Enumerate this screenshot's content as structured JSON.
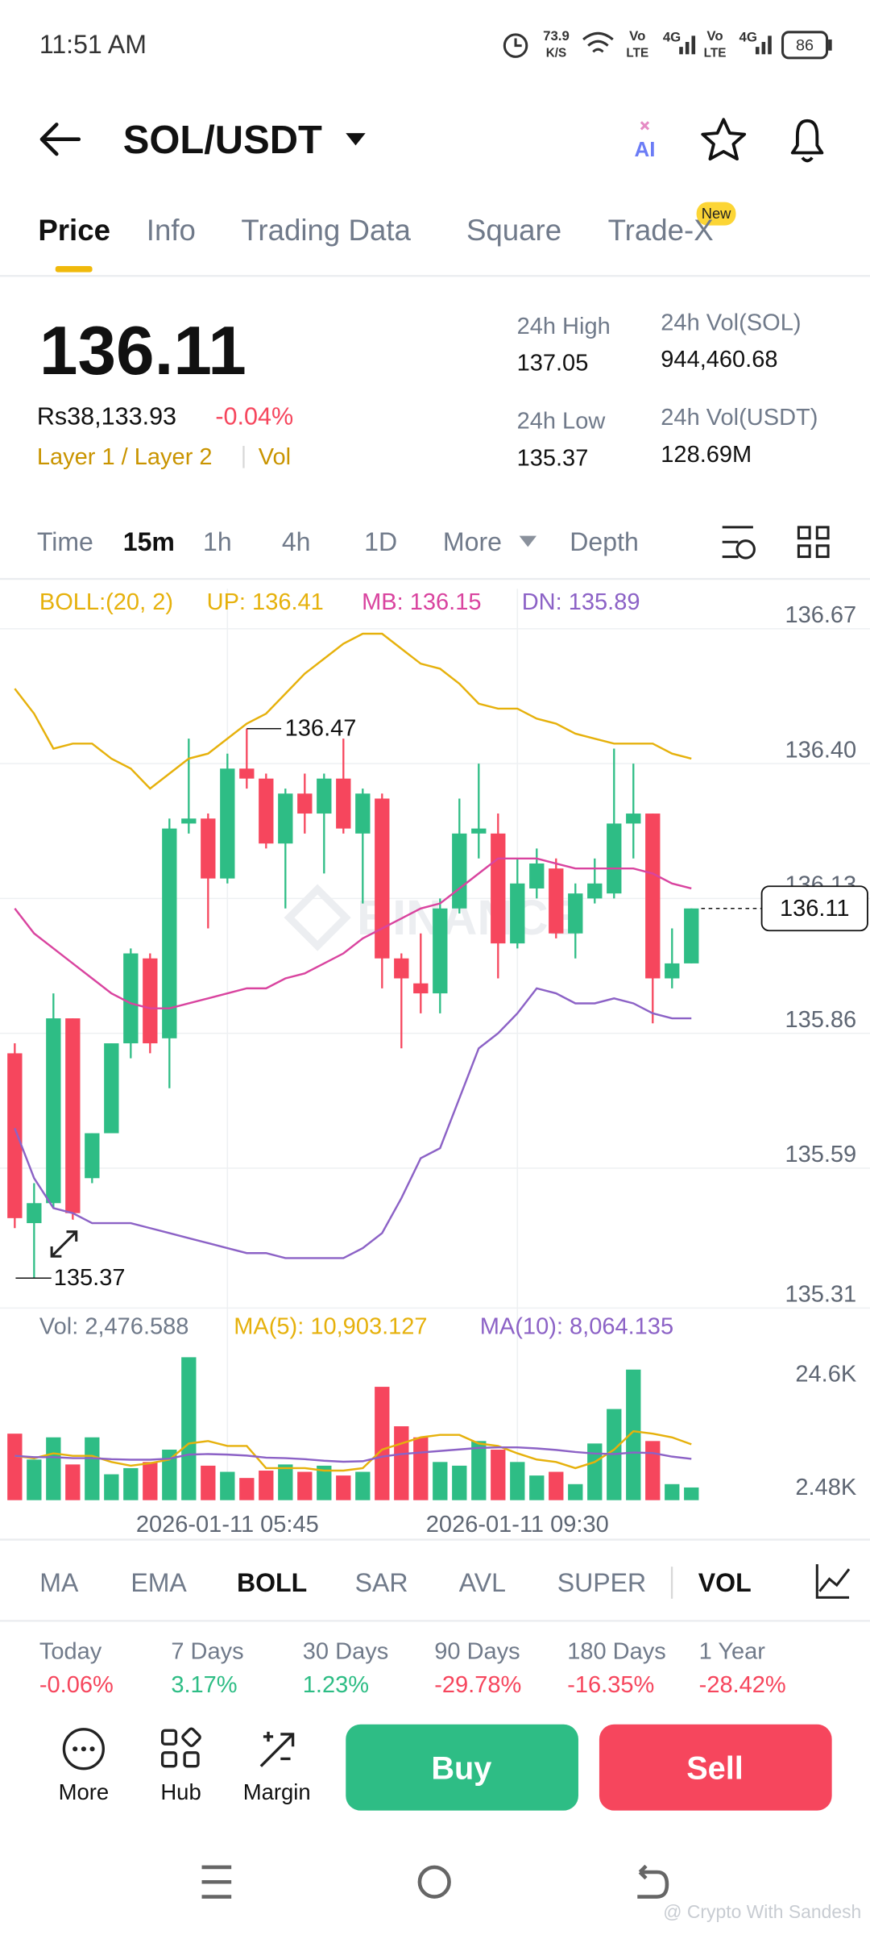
{
  "status_bar": {
    "time": "11:51 AM",
    "speed": "73.9",
    "speed_unit": "K/S",
    "volte": "Vo",
    "lte": "LTE",
    "net": "4G",
    "battery": "86"
  },
  "header": {
    "pair": "SOL/USDT",
    "ai": "AI"
  },
  "tabs": [
    "Price",
    "Info",
    "Trading Data",
    "Square",
    "Trade-X"
  ],
  "tab_badge": "New",
  "price_panel": {
    "price": "136.11",
    "fiat": "Rs38,133.93",
    "change": "-0.04%",
    "tags": [
      "Layer 1 / Layer 2",
      "Vol"
    ],
    "stats": [
      {
        "label": "24h High",
        "value": "137.05"
      },
      {
        "label": "24h Vol(SOL)",
        "value": "944,460.68"
      },
      {
        "label": "24h Low",
        "value": "135.37"
      },
      {
        "label": "24h Vol(USDT)",
        "value": "128.69M"
      }
    ]
  },
  "intervals": [
    "Time",
    "15m",
    "1h",
    "4h",
    "1D",
    "More",
    "Depth"
  ],
  "chart_data": [
    {
      "type": "candlestick",
      "title": "BOLL:(20, 2)",
      "watermark": "BINANCE",
      "categories": [
        null,
        null,
        null,
        null,
        null,
        null,
        null,
        null,
        null,
        null,
        null,
        "2026-01-11 05:45",
        null,
        null,
        null,
        null,
        null,
        null,
        null,
        null,
        null,
        null,
        null,
        null,
        null,
        null,
        "2026-01-11 09:30",
        null,
        null,
        null,
        null,
        null,
        null,
        null,
        null,
        null
      ],
      "open": [
        135.82,
        135.48,
        135.52,
        135.89,
        135.57,
        135.66,
        135.84,
        136.01,
        135.85,
        136.28,
        136.29,
        136.17,
        136.39,
        136.37,
        136.24,
        136.34,
        136.3,
        136.37,
        136.26,
        136.33,
        136.01,
        135.96,
        135.94,
        136.11,
        136.26,
        136.26,
        136.04,
        136.15,
        136.19,
        136.06,
        136.13,
        136.14,
        136.28,
        136.3,
        135.97,
        136.0
      ],
      "high": [
        135.84,
        135.56,
        135.94,
        135.89,
        135.66,
        135.84,
        136.03,
        136.02,
        136.29,
        136.45,
        136.3,
        136.42,
        136.47,
        136.38,
        136.35,
        136.38,
        136.38,
        136.45,
        136.35,
        136.34,
        136.02,
        136.06,
        136.13,
        136.33,
        136.4,
        136.3,
        136.21,
        136.23,
        136.21,
        136.16,
        136.21,
        136.43,
        136.4,
        136.3,
        136.07,
        136.11
      ],
      "low": [
        135.47,
        135.37,
        135.51,
        135.47,
        135.56,
        135.66,
        135.81,
        135.82,
        135.75,
        136.26,
        136.07,
        136.16,
        136.35,
        136.23,
        136.11,
        136.26,
        136.18,
        136.26,
        136.12,
        135.95,
        135.83,
        135.9,
        135.9,
        136.1,
        136.21,
        135.97,
        136.03,
        136.13,
        136.05,
        136.01,
        136.12,
        136.13,
        136.21,
        135.88,
        135.95,
        136.0
      ],
      "close": [
        135.49,
        135.52,
        135.89,
        135.5,
        135.66,
        135.84,
        136.02,
        135.84,
        136.27,
        136.29,
        136.17,
        136.39,
        136.37,
        136.24,
        136.34,
        136.3,
        136.37,
        136.27,
        136.34,
        136.01,
        135.97,
        135.94,
        136.11,
        136.26,
        136.27,
        136.04,
        136.16,
        136.2,
        136.06,
        136.14,
        136.16,
        136.28,
        136.3,
        135.97,
        136.0,
        136.11
      ],
      "up_color": "#2ebd85",
      "down_color": "#f6465d",
      "series": [
        {
          "name": "UP: 136.41",
          "color": "#e6b10c",
          "values": [
            136.55,
            136.5,
            136.43,
            136.44,
            136.44,
            136.41,
            136.39,
            136.35,
            136.38,
            136.41,
            136.42,
            136.45,
            136.48,
            136.5,
            136.54,
            136.58,
            136.61,
            136.64,
            136.66,
            136.66,
            136.63,
            136.6,
            136.59,
            136.56,
            136.52,
            136.51,
            136.51,
            136.49,
            136.48,
            136.46,
            136.45,
            136.44,
            136.44,
            136.44,
            136.42,
            136.41
          ]
        },
        {
          "name": "MB: 136.15",
          "color": "#d9449f",
          "values": [
            136.11,
            136.06,
            136.03,
            136.0,
            135.97,
            135.94,
            135.92,
            135.91,
            135.91,
            135.92,
            135.93,
            135.94,
            135.95,
            135.95,
            135.97,
            135.98,
            136.0,
            136.02,
            136.05,
            136.07,
            136.09,
            136.11,
            136.12,
            136.15,
            136.18,
            136.21,
            136.21,
            136.21,
            136.2,
            136.19,
            136.19,
            136.19,
            136.19,
            136.18,
            136.16,
            136.15
          ]
        },
        {
          "name": "DN: 135.89",
          "color": "#8c62c6",
          "values": [
            135.67,
            135.57,
            135.51,
            135.5,
            135.48,
            135.48,
            135.48,
            135.47,
            135.46,
            135.45,
            135.44,
            135.43,
            135.42,
            135.42,
            135.41,
            135.41,
            135.41,
            135.41,
            135.43,
            135.46,
            135.53,
            135.61,
            135.63,
            135.73,
            135.83,
            135.86,
            135.9,
            135.95,
            135.94,
            135.92,
            135.92,
            135.93,
            135.92,
            135.9,
            135.89,
            135.89
          ]
        }
      ],
      "ylim": [
        135.31,
        136.75
      ],
      "yticks": [
        136.67,
        {
          "value": 136.4,
          "label": "136.40"
        },
        136.13,
        135.86,
        135.59,
        135.31
      ],
      "grid": true,
      "high_label": "136.47",
      "low_label": "135.37",
      "last_label": "136.11"
    },
    {
      "type": "bar",
      "title": "Vol: 2,476.588",
      "values": [
        12980,
        7930,
        12260,
        6970,
        12260,
        5050,
        6250,
        7450,
        9860,
        27890,
        6730,
        5530,
        4330,
        5770,
        6970,
        5530,
        6730,
        4810,
        5530,
        22120,
        14420,
        12260,
        7450,
        6730,
        11540,
        9860,
        7450,
        4810,
        5530,
        3130,
        11060,
        17790,
        25480,
        11540,
        3130,
        2476.588
      ],
      "series": [
        {
          "name": "MA(5): 10,903.127",
          "color": "#e6b10c",
          "values": [
            8650,
            8170,
            9140,
            8650,
            8650,
            7450,
            6730,
            7210,
            7930,
            11060,
            11540,
            10580,
            10580,
            6250,
            6250,
            6250,
            5770,
            5770,
            6250,
            9860,
            11060,
            12260,
            12740,
            12740,
            11060,
            10580,
            9140,
            7930,
            7450,
            6250,
            7450,
            9860,
            13460,
            12980,
            12260,
            10903.127
          ]
        },
        {
          "name": "MA(10): 8,064.135",
          "color": "#8c62c6",
          "values": [
            8650,
            8400,
            8400,
            8200,
            8200,
            8000,
            7900,
            7900,
            8100,
            8900,
            9000,
            8900,
            8700,
            8300,
            8200,
            8000,
            7700,
            7500,
            7600,
            8500,
            9000,
            9300,
            9600,
            9900,
            10200,
            10300,
            10300,
            10100,
            9800,
            9400,
            9100,
            9000,
            9300,
            9200,
            8500,
            8064.135
          ]
        }
      ],
      "ylim": [
        0,
        29800
      ],
      "yticks": [
        {
          "value": 24600,
          "label": "24.6K"
        },
        {
          "value": 2480,
          "label": "2.48K"
        }
      ]
    }
  ],
  "indicator_tabs": [
    "MA",
    "EMA",
    "BOLL",
    "SAR",
    "AVL",
    "SUPER",
    "VOL"
  ],
  "performance": [
    {
      "label": "Today",
      "value": "-0.06%",
      "color": "#f6465d"
    },
    {
      "label": "7 Days",
      "value": "3.17%",
      "color": "#2ebd85"
    },
    {
      "label": "30 Days",
      "value": "1.23%",
      "color": "#2ebd85"
    },
    {
      "label": "90 Days",
      "value": "-29.78%",
      "color": "#f6465d"
    },
    {
      "label": "180 Days",
      "value": "-16.35%",
      "color": "#f6465d"
    },
    {
      "label": "1 Year",
      "value": "-28.42%",
      "color": "#f6465d"
    }
  ],
  "actions": [
    "More",
    "Hub",
    "Margin"
  ],
  "buy": "Buy",
  "sell": "Sell",
  "watermark": "@ Crypto With Sandesh"
}
